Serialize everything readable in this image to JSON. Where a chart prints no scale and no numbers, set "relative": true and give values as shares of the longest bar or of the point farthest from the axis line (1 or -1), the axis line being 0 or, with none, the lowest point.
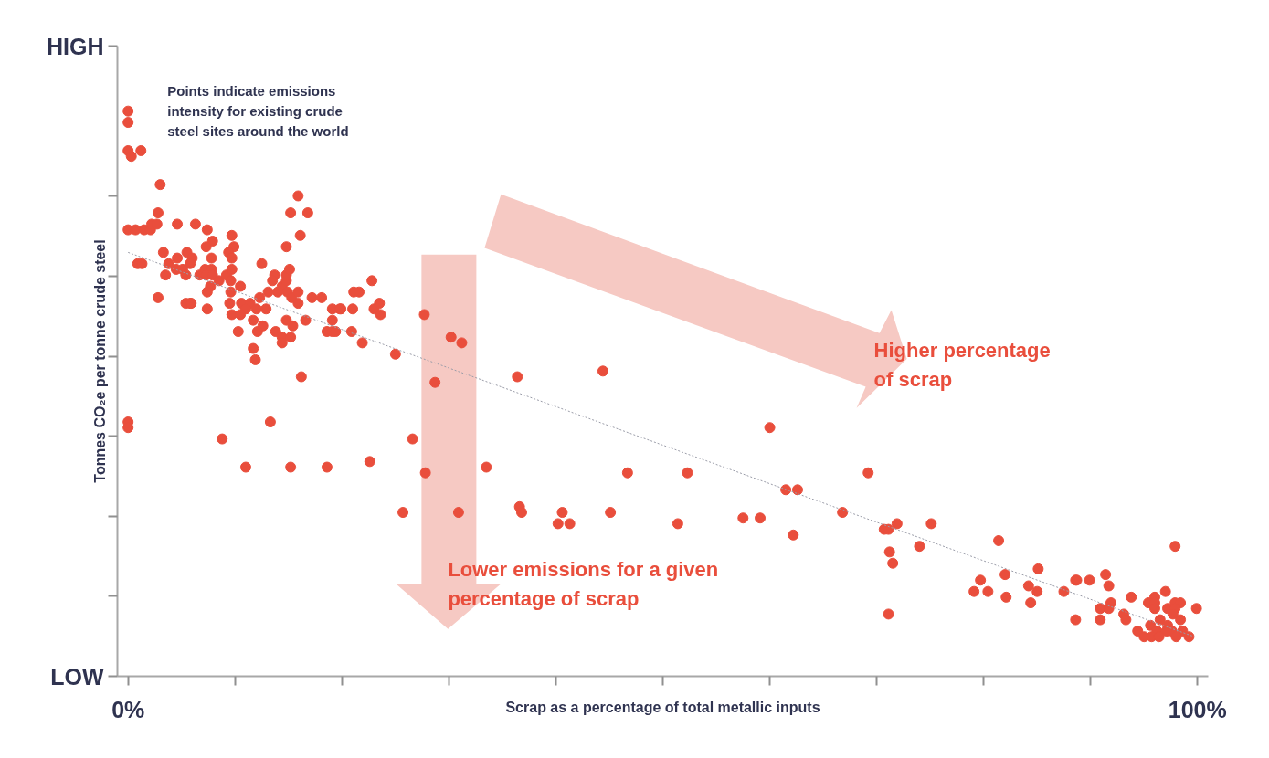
{
  "chart_data": {
    "type": "scatter",
    "relative": true,
    "xlabel": "Scrap as a percentage of total metallic inputs",
    "ylabel": "Tonnes CO₂e per tonne crude steel",
    "annotations": [
      "Points indicate emissions intensity for existing crude steel sites around the world",
      "Lower emissions for a given percentage of scrap",
      "Higher percentage of scrap",
      "LOW",
      "HIGH"
    ],
    "xlim": [
      -1,
      101
    ],
    "xticks": [
      {
        "value": 0,
        "label": "0%"
      },
      {
        "value": 10,
        "label": null
      },
      {
        "value": 20,
        "label": null
      },
      {
        "value": 30,
        "label": null
      },
      {
        "value": 40,
        "label": null
      },
      {
        "value": 50,
        "label": null
      },
      {
        "value": 60,
        "label": null
      },
      {
        "value": 70,
        "label": null
      },
      {
        "value": 80,
        "label": null
      },
      {
        "value": 90,
        "label": null
      },
      {
        "value": 100,
        "label": "100%"
      }
    ],
    "marker": "circle",
    "series": [
      {
        "color": "#e94e3c",
        "x": [
          0,
          0,
          0,
          0.3,
          1.2,
          3.0,
          0,
          0.7,
          1.5,
          2.1,
          2.2,
          2.7,
          2.8,
          4.6,
          6.3,
          7.4,
          7.9,
          7.3,
          9.7,
          9.9,
          9.4,
          9.7,
          3.3,
          0.9,
          1.3,
          3.5,
          3.8,
          4.6,
          5.5,
          6.0,
          5.8,
          4.5,
          5.1,
          5.4,
          6.7,
          7.2,
          7.8,
          7.8,
          7.3,
          7.9,
          7.7,
          8.5,
          9.2,
          9.7,
          9.6,
          7.4,
          9.6,
          9.5,
          10.5,
          10.6,
          11.4,
          11.0,
          12.0,
          12.9,
          12.3,
          12.5,
          13.1,
          13.7,
          13.5,
          14.0,
          14.4,
          14.8,
          14.8,
          15.1,
          14.8,
          15.9,
          15.2,
          16.8,
          16.1,
          14.9,
          15.3,
          15.9,
          15.9,
          17.2,
          18.1,
          19.1,
          19.8,
          19.9,
          21.0,
          21.1,
          21.6,
          22.8,
          23.0,
          23.5,
          23.6,
          2.8,
          5.4,
          5.8,
          5.9,
          7.4,
          9.7,
          10.5,
          11.7,
          12.6,
          12.1,
          10.3,
          11.7,
          11.9,
          13.8,
          14.4,
          14.4,
          15.2,
          15.4,
          14.8,
          16.6,
          18.6,
          19.1,
          19.4,
          19.1,
          20.9,
          21.9,
          25.0,
          16.2,
          0,
          0,
          8.8,
          13.3,
          11.0,
          15.2,
          18.6,
          22.6,
          26.6,
          27.8,
          25.7,
          30.9,
          33.5,
          36.6,
          36.8,
          28.7,
          36.4,
          27.7,
          30.2,
          31.2,
          44.4,
          40.6,
          40.2,
          41.3,
          45.1,
          46.7,
          51.4,
          52.3,
          57.5,
          59.1,
          60.0,
          61.5,
          62.6,
          62.2,
          66.8,
          69.2,
          71.9,
          75.1,
          70.7,
          71.1,
          74.0,
          71.2,
          71.5,
          71.1,
          81.4,
          82.0,
          79.7,
          79.1,
          80.4,
          82.1,
          85.1,
          84.2,
          85.0,
          84.4,
          87.5,
          88.7,
          88.6,
          89.9,
          91.4,
          91.7,
          91.9,
          90.9,
          91.7,
          88.6,
          90.9,
          93.8,
          93.1,
          93.3,
          94.4,
          95.0,
          97.0,
          97.9,
          96.0,
          95.4,
          96.0,
          96.0,
          97.2,
          97.9,
          98.4,
          97.9,
          97.7,
          98.4,
          99.9,
          95.6,
          96.5,
          97.2,
          97.6,
          96.2,
          97.1,
          98.6,
          95.7,
          96.4,
          98.0,
          99.2
        ],
        "values": [
          1.0,
          0.98,
          0.93,
          0.92,
          0.93,
          0.87,
          0.79,
          0.79,
          0.79,
          0.79,
          0.8,
          0.8,
          0.82,
          0.8,
          0.8,
          0.79,
          0.77,
          0.76,
          0.78,
          0.76,
          0.75,
          0.74,
          0.75,
          0.73,
          0.73,
          0.71,
          0.73,
          0.74,
          0.75,
          0.74,
          0.73,
          0.72,
          0.72,
          0.71,
          0.71,
          0.72,
          0.74,
          0.72,
          0.71,
          0.71,
          0.69,
          0.7,
          0.71,
          0.72,
          0.7,
          0.68,
          0.68,
          0.66,
          0.69,
          0.66,
          0.66,
          0.65,
          0.65,
          0.65,
          0.67,
          0.73,
          0.68,
          0.71,
          0.7,
          0.68,
          0.69,
          0.7,
          0.71,
          0.72,
          0.76,
          0.85,
          0.82,
          0.82,
          0.78,
          0.68,
          0.67,
          0.68,
          0.66,
          0.67,
          0.67,
          0.65,
          0.65,
          0.65,
          0.65,
          0.68,
          0.68,
          0.7,
          0.65,
          0.66,
          0.64,
          0.67,
          0.66,
          0.66,
          0.66,
          0.65,
          0.64,
          0.64,
          0.63,
          0.62,
          0.61,
          0.61,
          0.58,
          0.56,
          0.61,
          0.6,
          0.59,
          0.6,
          0.62,
          0.63,
          0.63,
          0.61,
          0.61,
          0.61,
          0.63,
          0.61,
          0.59,
          0.57,
          0.53,
          0.45,
          0.44,
          0.42,
          0.45,
          0.37,
          0.37,
          0.37,
          0.38,
          0.42,
          0.36,
          0.29,
          0.29,
          0.37,
          0.3,
          0.29,
          0.52,
          0.53,
          0.64,
          0.6,
          0.59,
          0.54,
          0.29,
          0.27,
          0.27,
          0.29,
          0.36,
          0.27,
          0.36,
          0.28,
          0.28,
          0.44,
          0.33,
          0.33,
          0.25,
          0.29,
          0.36,
          0.27,
          0.27,
          0.26,
          0.26,
          0.23,
          0.22,
          0.2,
          0.11,
          0.24,
          0.18,
          0.17,
          0.15,
          0.15,
          0.14,
          0.19,
          0.16,
          0.15,
          0.13,
          0.15,
          0.17,
          0.17,
          0.17,
          0.18,
          0.16,
          0.13,
          0.12,
          0.12,
          0.1,
          0.1,
          0.14,
          0.11,
          0.1,
          0.08,
          0.07,
          0.15,
          0.23,
          0.14,
          0.13,
          0.13,
          0.12,
          0.12,
          0.13,
          0.13,
          0.12,
          0.11,
          0.1,
          0.12,
          0.09,
          0.1,
          0.09,
          0.08,
          0.08,
          0.08,
          0.08,
          0.07,
          0.07,
          0.07,
          0.07
        ]
      },
      {
        "type": "line",
        "color": "#9a9ca8",
        "line_style": "dashed",
        "marker": "none",
        "x": [
          0,
          99.7
        ],
        "values": [
          0.75,
          0.07
        ]
      }
    ]
  }
}
